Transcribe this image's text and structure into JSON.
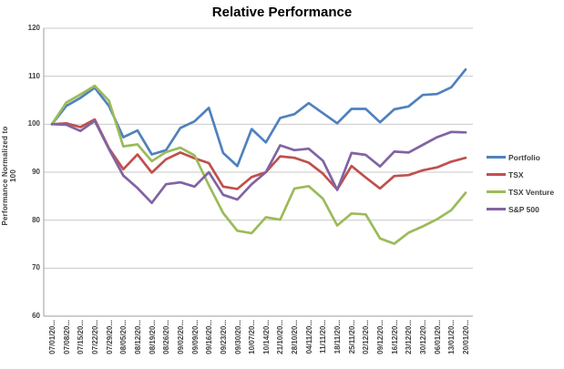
{
  "chart_data": {
    "type": "line",
    "title": "Relative Performance",
    "ylabel": "Performance Normalized to 100",
    "xlabel": "",
    "ylim": [
      60,
      120
    ],
    "yticks": [
      60,
      70,
      80,
      90,
      100,
      110,
      120
    ],
    "grid": true,
    "legend_position": "right",
    "background_color": "#FFFFFF",
    "gridline_color": "#C9C9C9",
    "axis_color": "#9E9E9E",
    "categories": [
      "07/01/20...",
      "07/08/20...",
      "07/15/20...",
      "07/22/20...",
      "07/29/20...",
      "08/05/20...",
      "08/12/20...",
      "08/19/20...",
      "08/26/20...",
      "09/02/20...",
      "09/09/20...",
      "09/16/20...",
      "09/23/20...",
      "09/30/20...",
      "10/07/20...",
      "10/14/20...",
      "21/10/20...",
      "28/10/20...",
      "04/11/20...",
      "11/11/20...",
      "18/11/20...",
      "25/11/20...",
      "02/12/20...",
      "09/12/20...",
      "16/12/20...",
      "23/12/20...",
      "30/12/20...",
      "06/01/20...",
      "13/01/20...",
      "20/01/20..."
    ],
    "series": [
      {
        "name": "Portfolio",
        "color": "#4F81BD",
        "values": [
          100,
          103.8,
          105.5,
          107.6,
          103.8,
          97.3,
          98.7,
          93.7,
          94.6,
          99.2,
          100.6,
          103.4,
          94.0,
          91.3,
          99.0,
          96.2,
          101.3,
          102.1,
          104.4,
          102.3,
          100.2,
          103.2,
          103.2,
          100.4,
          103.1,
          103.7,
          106.1,
          106.3,
          107.7,
          111.4
        ]
      },
      {
        "name": "TSX",
        "color": "#C0504D",
        "values": [
          100,
          100.2,
          99.4,
          101.0,
          95.0,
          90.6,
          93.7,
          89.9,
          92.7,
          94.1,
          92.9,
          91.9,
          87.0,
          86.5,
          89.0,
          90.0,
          93.3,
          93.0,
          92.0,
          89.7,
          86.4,
          91.3,
          88.9,
          86.6,
          89.2,
          89.4,
          90.4,
          91.0,
          92.2,
          93.0
        ]
      },
      {
        "name": "TSX Venture",
        "color": "#9BBB59",
        "values": [
          100,
          104.5,
          106.2,
          108.0,
          104.9,
          95.4,
          95.8,
          92.3,
          94.2,
          95.1,
          93.5,
          87.3,
          81.5,
          77.8,
          77.3,
          80.6,
          80.1,
          86.6,
          87.1,
          84.5,
          78.9,
          81.4,
          81.2,
          76.2,
          75.1,
          77.4,
          78.7,
          80.2,
          82.1,
          85.7
        ]
      },
      {
        "name": "S&P 500",
        "color": "#8064A2",
        "values": [
          100,
          99.9,
          98.6,
          100.7,
          94.8,
          89.3,
          86.7,
          83.6,
          87.5,
          87.9,
          87.0,
          90.0,
          85.3,
          84.3,
          87.5,
          90.0,
          95.6,
          94.6,
          94.9,
          92.4,
          86.3,
          94.0,
          93.6,
          91.2,
          94.3,
          94.1,
          95.7,
          97.3,
          98.4,
          98.3
        ]
      }
    ]
  }
}
